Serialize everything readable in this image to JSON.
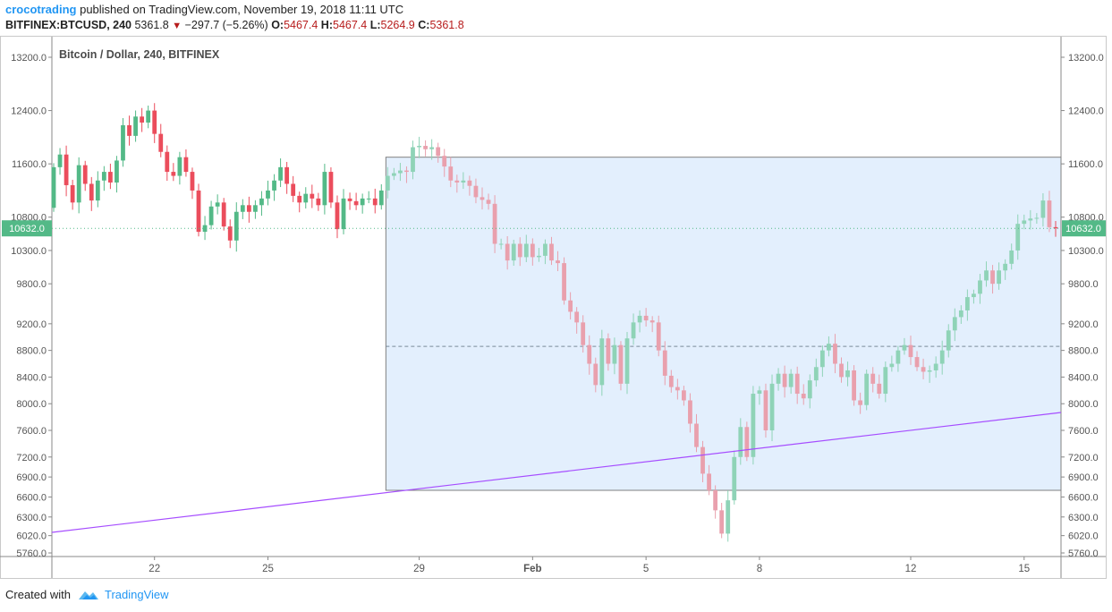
{
  "header": {
    "author": "crocotrading",
    "published_text": "published on TradingView.com, November 19, 2018 11:11 UTC",
    "symbol": "BITFINEX:BTCUSD, 240",
    "last": "5361.8",
    "change": "−297.7 (−5.26%)",
    "o_label": "O:",
    "o": "5467.4",
    "h_label": "H:",
    "h": "5467.4",
    "l_label": "L:",
    "l": "5264.9",
    "c_label": "C:",
    "c": "5361.8"
  },
  "footer": {
    "created_with": "Created with",
    "brand": "TradingView"
  },
  "colors": {
    "up": "#53b987",
    "down": "#eb4d5c",
    "up_faded": "#8fd3b7",
    "down_faded": "#e9a0ad",
    "box_fill": "#e3effd",
    "box_stroke": "#808080",
    "trendline": "#a64dff",
    "price_tag": "#53b987",
    "author": "#2196f3"
  },
  "chart_data": {
    "type": "candlestick",
    "title": "Bitcoin / Dollar, 240, BITFINEX",
    "ylim": [
      5700,
      13500
    ],
    "y_ticks": [
      5760,
      6020,
      6300,
      6600,
      6900,
      7200,
      7600,
      8000,
      8400,
      8800,
      9200,
      9800,
      10300,
      10800,
      11600,
      12400,
      13200
    ],
    "y_tick_labels": [
      "5760.0",
      "6020.0",
      "6300.0",
      "6600.0",
      "6900.0",
      "7200.0",
      "7600.0",
      "8000.0",
      "8400.0",
      "8800.0",
      "9200.0",
      "9800.0",
      "10300.0",
      "10800.0",
      "11600.0",
      "12400.0",
      "13200.0"
    ],
    "x_ticks": [
      {
        "label": "22",
        "index": 16
      },
      {
        "label": "25",
        "index": 34
      },
      {
        "label": "29",
        "index": 58
      },
      {
        "label": "Feb",
        "index": 76
      },
      {
        "label": "5",
        "index": 94
      },
      {
        "label": "8",
        "index": 112
      },
      {
        "label": "12",
        "index": 136
      },
      {
        "label": "15",
        "index": 154
      }
    ],
    "last_price_label": "10632.0",
    "last_price": 10632,
    "candles": [
      [
        10940,
        11550
      ],
      [
        11550,
        11740
      ],
      [
        11740,
        11280
      ],
      [
        11280,
        11020
      ],
      [
        11020,
        11580
      ],
      [
        11580,
        11300
      ],
      [
        11300,
        11050
      ],
      [
        11050,
        11350
      ],
      [
        11350,
        11480
      ],
      [
        11480,
        11320
      ],
      [
        11320,
        11650
      ],
      [
        11650,
        12180
      ],
      [
        12180,
        12020
      ],
      [
        12020,
        12310
      ],
      [
        12310,
        12220
      ],
      [
        12220,
        12400
      ],
      [
        12400,
        12050
      ],
      [
        12050,
        11780
      ],
      [
        11780,
        11480
      ],
      [
        11480,
        11420
      ],
      [
        11420,
        11700
      ],
      [
        11700,
        11480
      ],
      [
        11480,
        11200
      ],
      [
        11200,
        10580
      ],
      [
        10580,
        10680
      ],
      [
        10680,
        10960
      ],
      [
        10960,
        11020
      ],
      [
        11020,
        10660
      ],
      [
        10660,
        10450
      ],
      [
        10450,
        10880
      ],
      [
        10880,
        10980
      ],
      [
        10980,
        10880
      ],
      [
        10880,
        10980
      ],
      [
        10980,
        11080
      ],
      [
        11080,
        11200
      ],
      [
        11200,
        11350
      ],
      [
        11350,
        11550
      ],
      [
        11550,
        11300
      ],
      [
        11300,
        11120
      ],
      [
        11120,
        11020
      ],
      [
        11020,
        11150
      ],
      [
        11150,
        11080
      ],
      [
        11080,
        10980
      ],
      [
        10980,
        11480
      ],
      [
        11480,
        11020
      ],
      [
        11020,
        10620
      ],
      [
        10620,
        11080
      ],
      [
        11080,
        11040
      ],
      [
        11040,
        10980
      ],
      [
        10980,
        11080
      ],
      [
        11080,
        11080
      ],
      [
        11080,
        10980
      ],
      [
        10980,
        11200
      ],
      [
        11200,
        11420
      ],
      [
        11420,
        11460
      ],
      [
        11460,
        11500
      ],
      [
        11500,
        11480
      ],
      [
        11480,
        11850
      ],
      [
        11850,
        11870
      ],
      [
        11870,
        11820
      ],
      [
        11820,
        11850
      ],
      [
        11850,
        11720
      ],
      [
        11720,
        11560
      ],
      [
        11560,
        11350
      ],
      [
        11350,
        11320
      ],
      [
        11320,
        11350
      ],
      [
        11350,
        11270
      ],
      [
        11270,
        11100
      ],
      [
        11100,
        11060
      ],
      [
        11060,
        11000
      ],
      [
        11000,
        10400
      ],
      [
        10400,
        10400
      ],
      [
        10400,
        10150
      ],
      [
        10150,
        10400
      ],
      [
        10400,
        10200
      ],
      [
        10200,
        10400
      ],
      [
        10400,
        10200
      ],
      [
        10200,
        10220
      ],
      [
        10220,
        10400
      ],
      [
        10400,
        10150
      ],
      [
        10150,
        10110
      ],
      [
        10110,
        9550
      ],
      [
        9550,
        9380
      ],
      [
        9380,
        9220
      ],
      [
        9220,
        8880
      ],
      [
        8880,
        8600
      ],
      [
        8600,
        8280
      ],
      [
        8280,
        8980
      ],
      [
        8980,
        8600
      ],
      [
        8600,
        8880
      ],
      [
        8880,
        8300
      ],
      [
        8300,
        8980
      ],
      [
        8980,
        9220
      ],
      [
        9220,
        9320
      ],
      [
        9320,
        9250
      ],
      [
        9250,
        9220
      ],
      [
        9220,
        8800
      ],
      [
        8800,
        8420
      ],
      [
        8420,
        8250
      ],
      [
        8250,
        8200
      ],
      [
        8200,
        8050
      ],
      [
        8050,
        7700
      ],
      [
        7700,
        7350
      ],
      [
        7350,
        6950
      ],
      [
        6950,
        6700
      ],
      [
        6700,
        6400
      ],
      [
        6400,
        6050
      ],
      [
        6050,
        6550
      ],
      [
        6550,
        7200
      ],
      [
        7200,
        7650
      ],
      [
        7650,
        7200
      ],
      [
        7200,
        8150
      ],
      [
        8150,
        8200
      ],
      [
        8200,
        7600
      ],
      [
        7600,
        8300
      ],
      [
        8300,
        8450
      ],
      [
        8450,
        8250
      ],
      [
        8250,
        8450
      ],
      [
        8450,
        8150
      ],
      [
        8150,
        8080
      ],
      [
        8080,
        8350
      ],
      [
        8350,
        8550
      ],
      [
        8550,
        8800
      ],
      [
        8800,
        8900
      ],
      [
        8900,
        8600
      ],
      [
        8600,
        8400
      ],
      [
        8400,
        8500
      ],
      [
        8500,
        8050
      ],
      [
        8050,
        7980
      ],
      [
        7980,
        8450
      ],
      [
        8450,
        8300
      ],
      [
        8300,
        8150
      ],
      [
        8150,
        8550
      ],
      [
        8550,
        8600
      ],
      [
        8600,
        8800
      ],
      [
        8800,
        8880
      ],
      [
        8880,
        8700
      ],
      [
        8700,
        8550
      ],
      [
        8550,
        8480
      ],
      [
        8480,
        8500
      ],
      [
        8500,
        8600
      ],
      [
        8600,
        8800
      ],
      [
        8800,
        9100
      ],
      [
        9100,
        9300
      ],
      [
        9300,
        9400
      ],
      [
        9400,
        9600
      ],
      [
        9600,
        9650
      ],
      [
        9650,
        9850
      ],
      [
        9850,
        10000
      ],
      [
        10000,
        9800
      ],
      [
        9800,
        10000
      ],
      [
        10000,
        10100
      ],
      [
        10100,
        10300
      ],
      [
        10300,
        10700
      ],
      [
        10700,
        10750
      ],
      [
        10750,
        10780
      ],
      [
        10780,
        10790
      ],
      [
        10790,
        11050
      ],
      [
        11050,
        10650
      ],
      [
        10650,
        10632
      ]
    ]
  }
}
